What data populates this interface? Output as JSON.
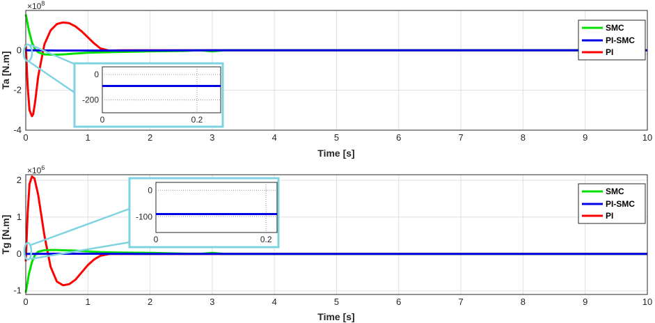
{
  "chart_data": [
    {
      "type": "line",
      "xlabel": "Time [s]",
      "ylabel": "Ta [N.m]",
      "exponent_label": "×10",
      "exponent_power": "8",
      "xlim": [
        0,
        10
      ],
      "ylim": [
        -4,
        2
      ],
      "xticks": [
        0,
        1,
        2,
        3,
        4,
        5,
        6,
        7,
        8,
        9,
        10
      ],
      "yticks": [
        -4,
        -2,
        0
      ],
      "grid": true,
      "legend_position": "top-right",
      "series": [
        {
          "name": "SMC",
          "color": "#00e000",
          "x": [
            0,
            0.02,
            0.05,
            0.1,
            0.15,
            0.2,
            0.3,
            0.45,
            0.6,
            0.8,
            1.0,
            1.2,
            1.5,
            2.0,
            2.5,
            2.8,
            3.0,
            3.2,
            10
          ],
          "y": [
            1.8,
            1.5,
            1.0,
            0.4,
            0.05,
            -0.1,
            -0.2,
            -0.22,
            -0.2,
            -0.16,
            -0.12,
            -0.1,
            -0.08,
            -0.05,
            -0.03,
            0.0,
            -0.05,
            0.0,
            0.0
          ]
        },
        {
          "name": "PI-SMC",
          "color": "#0000e6",
          "x": [
            0,
            0.1,
            0.5,
            1.0,
            1.5,
            2.0,
            3.0,
            10
          ],
          "y": [
            0.0,
            0.0,
            -0.01,
            -0.01,
            -0.01,
            -0.005,
            0.0,
            0.0
          ]
        },
        {
          "name": "PI",
          "color": "#ff0000",
          "x": [
            0,
            0.03,
            0.06,
            0.1,
            0.12,
            0.15,
            0.2,
            0.3,
            0.4,
            0.5,
            0.6,
            0.7,
            0.8,
            0.9,
            1.0,
            1.1,
            1.2,
            1.35,
            1.5,
            10
          ],
          "y": [
            0.3,
            -1.8,
            -3.0,
            -3.3,
            -3.2,
            -2.6,
            -1.3,
            0.3,
            1.0,
            1.32,
            1.4,
            1.36,
            1.2,
            0.95,
            0.65,
            0.35,
            0.1,
            -0.02,
            0.0,
            0.0
          ]
        }
      ],
      "inset": {
        "xlim": [
          0,
          0.25
        ],
        "ylim": [
          -300,
          60
        ],
        "xticks": [
          0,
          0.2
        ],
        "yticks": [
          0,
          -200
        ],
        "pi_smc_level": -90
      }
    },
    {
      "type": "line",
      "xlabel": "Time [s]",
      "ylabel": "Tg [N.m]",
      "exponent_label": "×10",
      "exponent_power": "6",
      "xlim": [
        0,
        10
      ],
      "ylim": [
        -1.1,
        2.15
      ],
      "xticks": [
        0,
        1,
        2,
        3,
        4,
        5,
        6,
        7,
        8,
        9,
        10
      ],
      "yticks": [
        -1,
        0,
        1,
        2
      ],
      "grid": true,
      "legend_position": "top-right",
      "series": [
        {
          "name": "SMC",
          "color": "#00e000",
          "x": [
            0,
            0.02,
            0.05,
            0.1,
            0.15,
            0.2,
            0.3,
            0.45,
            0.6,
            0.8,
            1.0,
            1.2,
            1.5,
            2.0,
            2.5,
            2.8,
            3.0,
            3.2,
            10
          ],
          "y": [
            -1.05,
            -0.85,
            -0.55,
            -0.22,
            -0.02,
            0.06,
            0.1,
            0.11,
            0.1,
            0.09,
            0.07,
            0.05,
            0.04,
            0.03,
            0.01,
            0.0,
            0.03,
            0.0,
            0.0
          ]
        },
        {
          "name": "PI-SMC",
          "color": "#0000e6",
          "x": [
            0,
            0.1,
            0.5,
            1.0,
            2.0,
            3.0,
            10
          ],
          "y": [
            0.0,
            0.0,
            0.005,
            0.005,
            0.002,
            0.0,
            0.0
          ]
        },
        {
          "name": "PI",
          "color": "#ff0000",
          "x": [
            0,
            0.03,
            0.06,
            0.1,
            0.14,
            0.2,
            0.3,
            0.4,
            0.5,
            0.6,
            0.7,
            0.8,
            0.9,
            1.0,
            1.1,
            1.2,
            1.35,
            1.5,
            10
          ],
          "y": [
            -0.2,
            1.1,
            1.9,
            2.1,
            2.05,
            1.6,
            0.5,
            -0.35,
            -0.75,
            -0.85,
            -0.82,
            -0.7,
            -0.5,
            -0.3,
            -0.15,
            -0.05,
            0.0,
            0.0,
            0.0
          ]
        }
      ],
      "inset": {
        "xlim": [
          0,
          0.22
        ],
        "ylim": [
          -160,
          30
        ],
        "xticks": [
          0,
          0.2
        ],
        "yticks": [
          0,
          -100
        ],
        "pi_smc_level": -90
      }
    }
  ]
}
